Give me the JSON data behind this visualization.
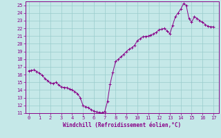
{
  "title": "",
  "xlabel": "Windchill (Refroidissement éolien,°C)",
  "ylabel": "",
  "background_color": "#c5e8e8",
  "line_color": "#880088",
  "marker_color": "#880088",
  "xlim": [
    -0.3,
    17.5
  ],
  "ylim": [
    11,
    25.5
  ],
  "xticks": [
    0,
    1,
    2,
    3,
    4,
    5,
    6,
    7,
    8,
    9,
    10,
    11,
    12,
    13,
    14,
    15,
    16,
    17
  ],
  "yticks": [
    11,
    12,
    13,
    14,
    15,
    16,
    17,
    18,
    19,
    20,
    21,
    22,
    23,
    24,
    25
  ],
  "grid_color": "#99cccc",
  "x": [
    0.0,
    0.25,
    0.5,
    0.75,
    1.0,
    1.25,
    1.5,
    1.75,
    2.0,
    2.25,
    2.5,
    2.75,
    3.0,
    3.25,
    3.5,
    3.75,
    4.0,
    4.25,
    4.5,
    4.75,
    5.0,
    5.25,
    5.5,
    5.75,
    6.0,
    6.25,
    6.5,
    6.75,
    7.0,
    7.25,
    7.5,
    7.75,
    8.0,
    8.25,
    8.5,
    8.75,
    9.0,
    9.25,
    9.5,
    9.75,
    10.0,
    10.25,
    10.5,
    10.75,
    11.0,
    11.25,
    11.5,
    11.75,
    12.0,
    12.25,
    12.5,
    12.75,
    13.0,
    13.25,
    13.5,
    13.75,
    14.0,
    14.25,
    14.5,
    14.75,
    15.0,
    15.25,
    15.5,
    15.75,
    16.0,
    16.25,
    16.5,
    16.75,
    17.0
  ],
  "y": [
    16.5,
    16.55,
    16.6,
    16.4,
    16.2,
    15.9,
    15.5,
    15.2,
    14.9,
    14.85,
    15.0,
    14.7,
    14.4,
    14.35,
    14.3,
    14.15,
    14.0,
    13.8,
    13.5,
    13.0,
    12.0,
    11.85,
    11.7,
    11.45,
    11.3,
    11.15,
    11.1,
    11.05,
    11.2,
    12.5,
    14.8,
    16.3,
    17.7,
    18.0,
    18.3,
    18.65,
    19.0,
    19.3,
    19.5,
    19.8,
    20.4,
    20.65,
    20.9,
    20.95,
    21.0,
    21.15,
    21.3,
    21.5,
    21.8,
    21.9,
    22.0,
    21.65,
    21.3,
    22.4,
    23.5,
    24.0,
    24.5,
    25.2,
    25.0,
    23.3,
    22.8,
    23.5,
    23.3,
    23.0,
    22.8,
    22.5,
    22.3,
    22.2,
    22.2
  ]
}
